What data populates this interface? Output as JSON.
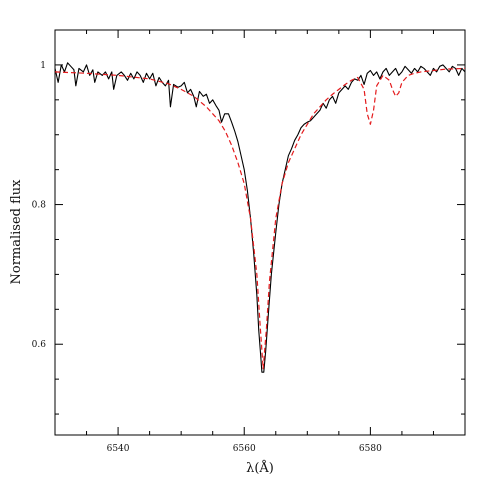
{
  "chart_data": {
    "type": "line",
    "xlabel": "λ(Å)",
    "ylabel": "Normalised flux",
    "xlim": [
      6530,
      6595
    ],
    "ylim": [
      0.47,
      1.05
    ],
    "grid": false,
    "x_ticks": {
      "major": [
        6540,
        6560,
        6580
      ],
      "major_labels": [
        "6540",
        "6560",
        "6580"
      ],
      "minor_step": 5
    },
    "y_ticks": {
      "major": [
        0.6,
        0.8,
        1.0
      ],
      "major_labels": [
        "0.6",
        "0.8",
        "1"
      ],
      "minor_step": 0.05
    },
    "series": [
      {
        "style": "solid",
        "color": "#000000",
        "x": [
          6530,
          6530.5,
          6531,
          6531.5,
          6532,
          6532.5,
          6533,
          6533.3,
          6533.8,
          6534.5,
          6535,
          6535.5,
          6536,
          6536.3,
          6536.8,
          6537.5,
          6538,
          6538.5,
          6539,
          6539.3,
          6539.8,
          6540.5,
          6541,
          6541.5,
          6542,
          6542.5,
          6543,
          6543.5,
          6544,
          6544.5,
          6545,
          6545.5,
          6546,
          6546.5,
          6547,
          6547.5,
          6548,
          6548.3,
          6548.8,
          6549.5,
          6550,
          6550.5,
          6551,
          6551.5,
          6552,
          6552.4,
          6552.9,
          6553.5,
          6554,
          6554.5,
          6555,
          6555.5,
          6556,
          6556.4,
          6556.9,
          6557.5,
          6558,
          6558.5,
          6559,
          6559.5,
          6560,
          6560.5,
          6561,
          6561.5,
          6562,
          6562.3,
          6562.6,
          6562.8,
          6563.1,
          6563.4,
          6563.8,
          6564.3,
          6565,
          6565.5,
          6566,
          6566.5,
          6567,
          6567.5,
          6568,
          6568.5,
          6569,
          6569.5,
          6570,
          6570.5,
          6571,
          6571.5,
          6572,
          6572.5,
          6573,
          6573.5,
          6574,
          6574.5,
          6575,
          6575.5,
          6576,
          6576.5,
          6577,
          6577.5,
          6578,
          6578.5,
          6579,
          6579.5,
          6580,
          6580.5,
          6581,
          6581.5,
          6582,
          6582.5,
          6583,
          6583.5,
          6584,
          6584.5,
          6585,
          6585.5,
          6586,
          6586.5,
          6587,
          6587.5,
          6588,
          6588.5,
          6589,
          6589.5,
          6590,
          6590.5,
          6591,
          6591.5,
          6592,
          6592.5,
          6593,
          6593.5,
          6594,
          6594.5,
          6595
        ],
        "y": [
          0.995,
          0.975,
          1.0,
          0.99,
          1.003,
          0.998,
          0.993,
          0.97,
          0.995,
          0.99,
          1.0,
          0.985,
          0.993,
          0.975,
          0.99,
          0.985,
          0.99,
          0.98,
          0.99,
          0.965,
          0.985,
          0.99,
          0.985,
          0.978,
          0.988,
          0.98,
          0.99,
          0.985,
          0.975,
          0.988,
          0.98,
          0.988,
          0.97,
          0.982,
          0.975,
          0.97,
          0.978,
          0.94,
          0.972,
          0.968,
          0.97,
          0.975,
          0.96,
          0.965,
          0.955,
          0.94,
          0.962,
          0.955,
          0.958,
          0.945,
          0.95,
          0.942,
          0.935,
          0.918,
          0.93,
          0.93,
          0.918,
          0.905,
          0.89,
          0.87,
          0.85,
          0.82,
          0.78,
          0.73,
          0.67,
          0.62,
          0.585,
          0.56,
          0.56,
          0.59,
          0.64,
          0.7,
          0.76,
          0.8,
          0.83,
          0.85,
          0.87,
          0.88,
          0.892,
          0.9,
          0.91,
          0.915,
          0.918,
          0.92,
          0.925,
          0.93,
          0.935,
          0.945,
          0.938,
          0.95,
          0.955,
          0.945,
          0.96,
          0.965,
          0.97,
          0.965,
          0.975,
          0.98,
          0.978,
          0.985,
          0.972,
          0.988,
          0.992,
          0.985,
          0.99,
          0.98,
          0.99,
          0.995,
          0.985,
          0.99,
          0.995,
          0.985,
          0.99,
          0.998,
          0.993,
          0.988,
          0.995,
          0.99,
          0.998,
          0.995,
          0.99,
          0.985,
          0.995,
          0.99,
          0.998,
          1.0,
          0.995,
          0.99,
          0.998,
          0.995,
          0.985,
          0.995,
          0.99
        ]
      },
      {
        "style": "dashed",
        "color": "#e41a1c",
        "x": [
          6530,
          6535,
          6540,
          6545,
          6548,
          6550,
          6552,
          6554,
          6556,
          6557,
          6558,
          6559,
          6560,
          6561,
          6562,
          6562.5,
          6563,
          6563.5,
          6564,
          6565,
          6566,
          6567,
          6568,
          6569,
          6570,
          6571,
          6572,
          6573,
          6574,
          6575,
          6576,
          6577,
          6578,
          6579,
          6579.5,
          6580,
          6580.5,
          6581,
          6582,
          6583,
          6583.5,
          6584,
          6584.5,
          6585,
          6586,
          6587,
          6588,
          6590,
          6592,
          6595
        ],
        "y": [
          0.99,
          0.988,
          0.985,
          0.98,
          0.973,
          0.965,
          0.955,
          0.94,
          0.92,
          0.905,
          0.885,
          0.86,
          0.83,
          0.78,
          0.7,
          0.63,
          0.565,
          0.62,
          0.69,
          0.78,
          0.83,
          0.86,
          0.88,
          0.9,
          0.915,
          0.93,
          0.94,
          0.95,
          0.958,
          0.965,
          0.972,
          0.978,
          0.982,
          0.965,
          0.93,
          0.915,
          0.935,
          0.97,
          0.985,
          0.978,
          0.965,
          0.955,
          0.96,
          0.975,
          0.985,
          0.988,
          0.99,
          0.992,
          0.994,
          0.995
        ]
      }
    ]
  }
}
